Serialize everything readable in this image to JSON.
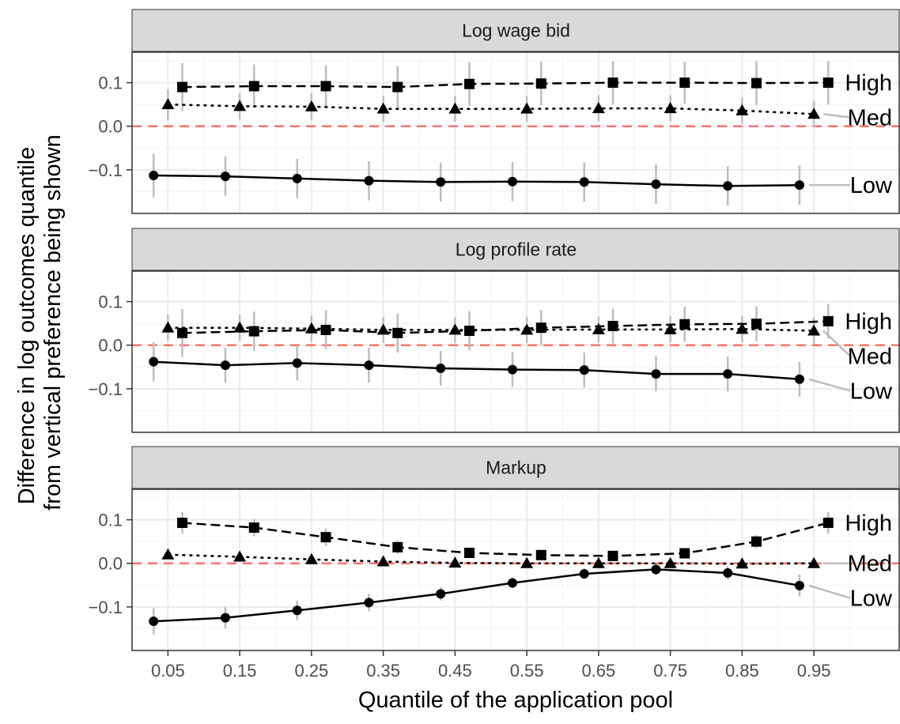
{
  "chart_data": {
    "type": "line",
    "xlabel": "Quantile of the application pool",
    "ylabel_lines": [
      "Difference in log outcomes quantile",
      "from vertical preference being shown"
    ],
    "x_ticks": [
      0.05,
      0.15,
      0.25,
      0.35,
      0.45,
      0.55,
      0.65,
      0.75,
      0.85,
      0.95
    ],
    "x_tick_labels": [
      "0.05",
      "0.15",
      "0.25",
      "0.35",
      "0.45",
      "0.55",
      "0.65",
      "0.75",
      "0.85",
      "0.95"
    ],
    "xlim": [
      0.0,
      1.07
    ],
    "y_ticks": [
      -0.1,
      0.0,
      0.1
    ],
    "y_tick_labels": [
      "−0.1",
      "0.0",
      "0.1"
    ],
    "ylim": [
      -0.2,
      0.17
    ],
    "reference_line": {
      "y": 0.0,
      "color": "#F8766D",
      "style": "dashed"
    },
    "grid": true,
    "colors": {
      "strip_bg": "#D9D9D9",
      "grid_major": "#EBEBEB",
      "grid_minor": "#F5F5F5",
      "errorbar": "#BDBDBD",
      "series": "#000000"
    },
    "panels": [
      {
        "title": "Log wage bid",
        "series": [
          {
            "name": "High",
            "marker": "square",
            "linestyle": "dashed",
            "x": [
              0.07,
              0.17,
              0.27,
              0.37,
              0.47,
              0.57,
              0.67,
              0.77,
              0.87,
              0.97
            ],
            "y": [
              0.09,
              0.092,
              0.092,
              0.09,
              0.097,
              0.098,
              0.1,
              0.1,
              0.099,
              0.1
            ],
            "err": [
              0.055,
              0.05,
              0.048,
              0.048,
              0.05,
              0.05,
              0.05,
              0.048,
              0.05,
              0.05
            ]
          },
          {
            "name": "Med",
            "marker": "triangle",
            "linestyle": "dotted",
            "x": [
              0.05,
              0.15,
              0.25,
              0.35,
              0.45,
              0.55,
              0.65,
              0.75,
              0.85,
              0.95
            ],
            "y": [
              0.05,
              0.046,
              0.045,
              0.04,
              0.04,
              0.04,
              0.041,
              0.041,
              0.036,
              0.028
            ],
            "err": [
              0.035,
              0.03,
              0.03,
              0.03,
              0.03,
              0.03,
              0.03,
              0.03,
              0.03,
              0.03
            ]
          },
          {
            "name": "Low",
            "marker": "circle",
            "linestyle": "solid",
            "x": [
              0.03,
              0.13,
              0.23,
              0.33,
              0.43,
              0.53,
              0.63,
              0.73,
              0.83,
              0.93
            ],
            "y": [
              -0.113,
              -0.115,
              -0.12,
              -0.125,
              -0.128,
              -0.127,
              -0.128,
              -0.133,
              -0.137,
              -0.135
            ],
            "err": [
              0.05,
              0.045,
              0.045,
              0.045,
              0.045,
              0.045,
              0.045,
              0.045,
              0.045,
              0.045
            ]
          }
        ]
      },
      {
        "title": "Log profile rate",
        "series": [
          {
            "name": "High",
            "marker": "square",
            "linestyle": "dashed",
            "x": [
              0.07,
              0.17,
              0.27,
              0.37,
              0.47,
              0.57,
              0.67,
              0.77,
              0.87,
              0.97
            ],
            "y": [
              0.028,
              0.032,
              0.035,
              0.028,
              0.033,
              0.04,
              0.044,
              0.048,
              0.049,
              0.055
            ],
            "err": [
              0.055,
              0.045,
              0.045,
              0.045,
              0.045,
              0.04,
              0.04,
              0.04,
              0.04,
              0.04
            ]
          },
          {
            "name": "Med",
            "marker": "triangle",
            "linestyle": "dotted",
            "x": [
              0.05,
              0.15,
              0.25,
              0.35,
              0.45,
              0.55,
              0.65,
              0.75,
              0.85,
              0.95
            ],
            "y": [
              0.04,
              0.04,
              0.038,
              0.035,
              0.035,
              0.035,
              0.036,
              0.036,
              0.037,
              0.033
            ],
            "err": [
              0.03,
              0.03,
              0.03,
              0.03,
              0.03,
              0.03,
              0.03,
              0.03,
              0.03,
              0.03
            ]
          },
          {
            "name": "Low",
            "marker": "circle",
            "linestyle": "solid",
            "x": [
              0.03,
              0.13,
              0.23,
              0.33,
              0.43,
              0.53,
              0.63,
              0.73,
              0.83,
              0.93
            ],
            "y": [
              -0.038,
              -0.046,
              -0.041,
              -0.046,
              -0.053,
              -0.056,
              -0.057,
              -0.066,
              -0.066,
              -0.078
            ],
            "err": [
              0.045,
              0.04,
              0.04,
              0.04,
              0.04,
              0.04,
              0.04,
              0.04,
              0.04,
              0.04
            ]
          }
        ]
      },
      {
        "title": "Markup",
        "series": [
          {
            "name": "High",
            "marker": "square",
            "linestyle": "dashed",
            "x": [
              0.07,
              0.17,
              0.27,
              0.37,
              0.47,
              0.57,
              0.67,
              0.77,
              0.87,
              0.97
            ],
            "y": [
              0.093,
              0.082,
              0.06,
              0.037,
              0.024,
              0.019,
              0.017,
              0.023,
              0.05,
              0.093
            ],
            "err": [
              0.025,
              0.02,
              0.02,
              0.015,
              0.012,
              0.01,
              0.01,
              0.012,
              0.015,
              0.025
            ]
          },
          {
            "name": "Med",
            "marker": "triangle",
            "linestyle": "dotted",
            "x": [
              0.05,
              0.15,
              0.25,
              0.35,
              0.45,
              0.55,
              0.65,
              0.75,
              0.85,
              0.95
            ],
            "y": [
              0.02,
              0.015,
              0.009,
              0.004,
              0.001,
              0.0,
              0.0,
              0.0,
              -0.001,
              0.0
            ],
            "err": [
              0.01,
              0.008,
              0.008,
              0.006,
              0.006,
              0.006,
              0.006,
              0.006,
              0.006,
              0.006
            ]
          },
          {
            "name": "Low",
            "marker": "circle",
            "linestyle": "solid",
            "x": [
              0.03,
              0.13,
              0.23,
              0.33,
              0.43,
              0.53,
              0.63,
              0.73,
              0.83,
              0.93
            ],
            "y": [
              -0.133,
              -0.125,
              -0.108,
              -0.09,
              -0.07,
              -0.045,
              -0.024,
              -0.014,
              -0.022,
              -0.051
            ],
            "err": [
              0.03,
              0.025,
              0.022,
              0.02,
              0.015,
              0.012,
              0.012,
              0.012,
              0.015,
              0.025
            ]
          }
        ]
      }
    ]
  }
}
